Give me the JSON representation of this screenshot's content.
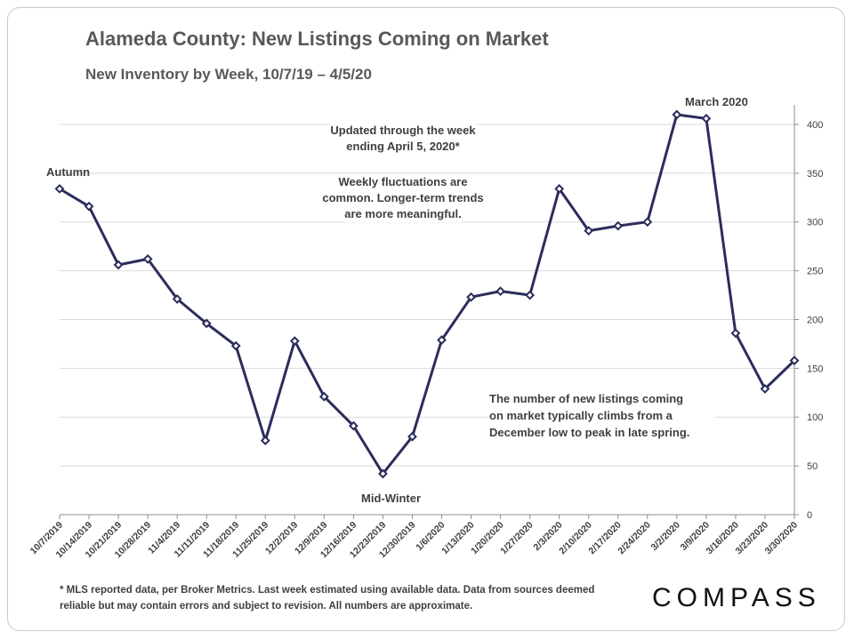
{
  "title": "Alameda County: New Listings Coming on Market",
  "subtitle": "New Inventory by Week, 10/7/19 – 4/5/20",
  "annotations": {
    "autumn": "Autumn",
    "march": "March 2020",
    "midwinter": "Mid-Winter",
    "updated_line1": "Updated through the week",
    "updated_line2": "ending April 5, 2020*",
    "fluct_line1": "Weekly fluctuations are",
    "fluct_line2": "common. Longer-term trends",
    "fluct_line3": "are more meaningful.",
    "spring_line1": "The number of new listings coming",
    "spring_line2": "on market typically climbs from a",
    "spring_line3": "December low to peak in late spring."
  },
  "footnote_line1": "* MLS reported data, per Broker Metrics. Last week estimated using available data. Data from sources deemed",
  "footnote_line2": "reliable but may contain errors and subject to revision.  All numbers are approximate.",
  "logo": "COMPASS",
  "colors": {
    "line": "#2b2d5c",
    "grid": "#d9d9d9",
    "text": "#3f3f3f"
  },
  "chart_data": {
    "type": "line",
    "categories": [
      "10/7/2019",
      "10/14/2019",
      "10/21/2019",
      "10/28/2019",
      "11/4/2019",
      "11/11/2019",
      "11/18/2019",
      "11/25/2019",
      "12/2/2019",
      "12/9/2019",
      "12/16/2019",
      "12/23/2019",
      "12/30/2019",
      "1/6/2020",
      "1/13/2020",
      "1/20/2020",
      "1/27/2020",
      "2/3/2020",
      "2/10/2020",
      "2/17/2020",
      "2/24/2020",
      "3/2/2020",
      "3/9/2020",
      "3/16/2020",
      "3/23/2020",
      "3/30/2020"
    ],
    "values": [
      334,
      316,
      256,
      262,
      221,
      196,
      173,
      76,
      178,
      121,
      91,
      42,
      80,
      179,
      223,
      229,
      225,
      334,
      291,
      296,
      300,
      410,
      406,
      186,
      129,
      158
    ],
    "yticks": [
      0,
      50,
      100,
      150,
      200,
      250,
      300,
      350,
      400
    ],
    "ylim": [
      0,
      420
    ],
    "y_axis_side": "right",
    "grid": true,
    "marker": "diamond"
  }
}
